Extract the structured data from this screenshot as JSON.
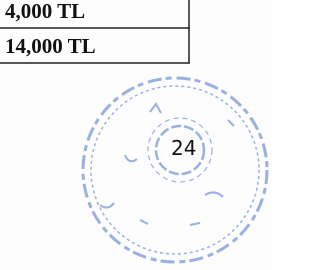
{
  "table": {
    "rows": [
      [
        "4,000 TL"
      ],
      [
        "14,000 TL"
      ]
    ]
  },
  "stamp": {
    "number": "24"
  }
}
